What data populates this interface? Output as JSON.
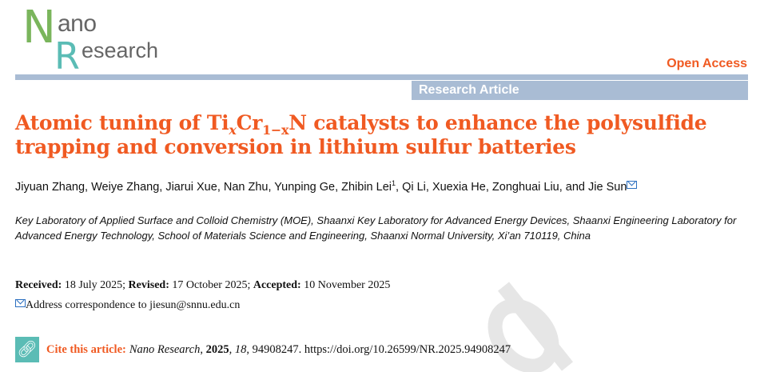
{
  "logo": {
    "n": "N",
    "ano": "ano",
    "r": "R",
    "esearch": "esearch"
  },
  "open_access": "Open Access",
  "article_type": "Research Article",
  "title": {
    "p1": "Atomic tuning of Ti",
    "sub1": "x",
    "p2": "Cr",
    "sub2": "1−x",
    "p3": "N catalysts to enhance the polysulfide trapping and conversion in lithium sulfur batteries"
  },
  "authors": {
    "a": "Jiyuan Zhang, Weiye Zhang, Jiarui Xue, Nan Zhu, Yunping Ge, Zhibin Lei",
    "sup": "1",
    "b": ", Qi Li, Xuexia He, Zonghuai Liu, and Jie Sun"
  },
  "affiliation": "Key Laboratory of Applied Surface and Colloid Chemistry (MOE), Shaanxi Key Laboratory for Advanced Energy Devices, Shaanxi Engineering Laboratory for Advanced Energy Technology, School of Materials Science and Engineering, Shaanxi Normal University, Xi’an 710119, China",
  "dates": {
    "received_label": "Received:",
    "received": " 18 July 2025; ",
    "revised_label": "Revised:",
    "revised": " 17 October 2025; ",
    "accepted_label": "Accepted:",
    "accepted": " 10 November 2025"
  },
  "correspondence": "Address correspondence to jiesun@snnu.edu.cn",
  "cite": {
    "label": "Cite this article:",
    "journal": "Nano Research",
    "year": "2025",
    "volume": "18",
    "rest": ", 94908247. https://doi.org/10.26599/NR.2025.94908247"
  },
  "watermark": "d",
  "colors": {
    "accent": "#f05a22",
    "bar": "#a9bcd4",
    "logo_green": "#7ab55c",
    "logo_teal": "#5bbcb5"
  }
}
